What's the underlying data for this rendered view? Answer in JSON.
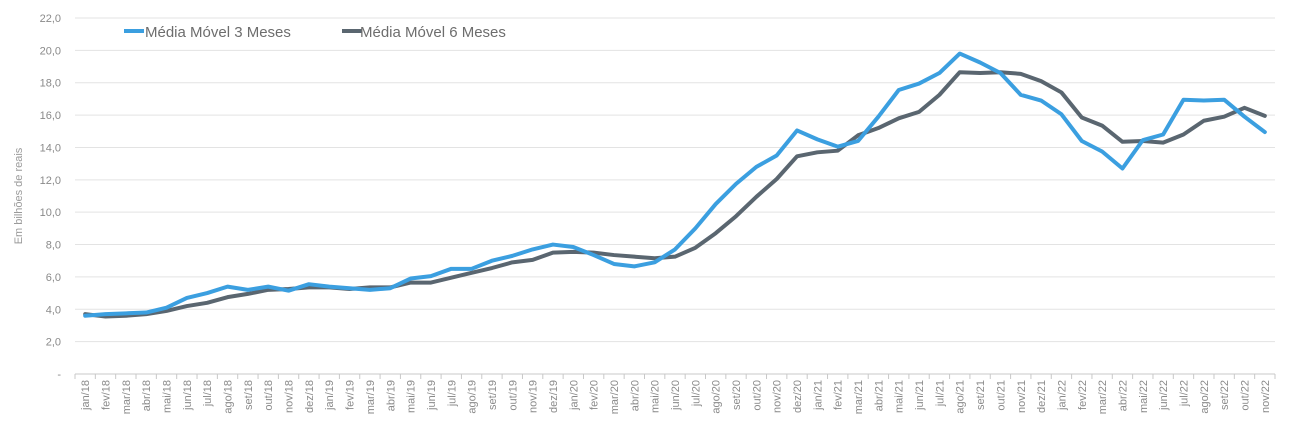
{
  "chart_data": {
    "type": "line",
    "title": "",
    "xlabel": "",
    "ylabel": "Em bilhões de reais",
    "ylim": [
      0,
      22
    ],
    "y_ticks": [
      "-",
      "2,0",
      "4,0",
      "6,0",
      "8,0",
      "10,0",
      "12,0",
      "14,0",
      "16,0",
      "18,0",
      "20,0",
      "22,0"
    ],
    "grid": true,
    "legend": "top-left",
    "categories": [
      "jan/18",
      "fev/18",
      "mar/18",
      "abr/18",
      "mai/18",
      "jun/18",
      "jul/18",
      "ago/18",
      "set/18",
      "out/18",
      "nov/18",
      "dez/18",
      "jan/19",
      "fev/19",
      "mar/19",
      "abr/19",
      "mai/19",
      "jun/19",
      "jul/19",
      "ago/19",
      "set/19",
      "out/19",
      "nov/19",
      "dez/19",
      "jan/20",
      "fev/20",
      "mar/20",
      "abr/20",
      "mai/20",
      "jun/20",
      "jul/20",
      "ago/20",
      "set/20",
      "out/20",
      "nov/20",
      "dez/20",
      "jan/21",
      "fev/21",
      "mar/21",
      "abr/21",
      "mai/21",
      "jun/21",
      "jul/21",
      "ago/21",
      "set/21",
      "out/21",
      "nov/21",
      "dez/21",
      "jan/22",
      "fev/22",
      "mar/22",
      "abr/22",
      "mai/22",
      "jun/22",
      "jul/22",
      "ago/22",
      "set/22",
      "out/22",
      "nov/22"
    ],
    "series": [
      {
        "name": "Média Móvel 3 Meses",
        "color": "#3b9fe0",
        "values": [
          3.6,
          3.7,
          3.75,
          3.8,
          4.1,
          4.7,
          5.0,
          5.4,
          5.2,
          5.4,
          5.15,
          5.55,
          5.4,
          5.3,
          5.2,
          5.3,
          5.9,
          6.05,
          6.5,
          6.5,
          7.0,
          7.3,
          7.7,
          8.0,
          7.85,
          7.35,
          6.8,
          6.65,
          6.9,
          7.7,
          9.0,
          10.5,
          11.75,
          12.8,
          13.5,
          15.05,
          14.5,
          14.05,
          14.4,
          15.9,
          17.55,
          17.95,
          18.6,
          19.8,
          19.25,
          18.6,
          17.25,
          16.9,
          16.05,
          14.4,
          13.75,
          12.7,
          14.45,
          14.8,
          16.95,
          16.9,
          16.95,
          15.9,
          14.95
        ]
      },
      {
        "name": "Média Móvel 6 Meses",
        "color": "#5a6670",
        "values": [
          3.7,
          3.55,
          3.6,
          3.7,
          3.9,
          4.2,
          4.4,
          4.75,
          4.95,
          5.2,
          5.25,
          5.35,
          5.35,
          5.25,
          5.35,
          5.35,
          5.65,
          5.65,
          5.95,
          6.25,
          6.55,
          6.9,
          7.05,
          7.5,
          7.55,
          7.5,
          7.35,
          7.25,
          7.15,
          7.25,
          7.8,
          8.7,
          9.75,
          10.95,
          12.05,
          13.45,
          13.7,
          13.8,
          14.75,
          15.2,
          15.8,
          16.2,
          17.25,
          18.65,
          18.6,
          18.65,
          18.55,
          18.1,
          17.4,
          15.85,
          15.35,
          14.35,
          14.4,
          14.3,
          14.8,
          15.65,
          15.9,
          16.45,
          15.95
        ]
      }
    ]
  }
}
